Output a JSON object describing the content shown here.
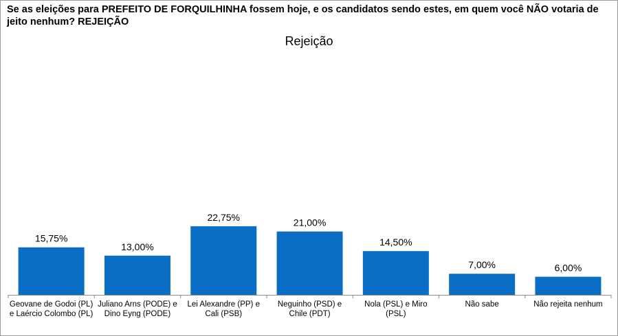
{
  "question": "Se as eleições para PREFEITO DE FORQUILHINHA fossem hoje, e os candidatos sendo estes, em quem você NÃO votaria de jeito nenhum? REJEIÇÃO",
  "colors": {
    "bar": "#0a6fc4",
    "axis": "#8c8c8c"
  },
  "chart_data": {
    "type": "bar",
    "title": "Rejeição",
    "categories": [
      "Geovane de Godoi (PL) e Laércio Colombo (PL)",
      "Juliano Arns (PODE) e Dino Eyng (PODE)",
      "Lei Alexandre (PP) e Cali (PSB)",
      "Neguinho (PSD) e Chile (PDT)",
      "Nola (PSL) e Miro (PSL)",
      "Não sabe",
      "Não rejeita nenhum"
    ],
    "values": [
      15.75,
      13.0,
      22.75,
      21.0,
      14.5,
      7.0,
      6.0
    ],
    "value_labels": [
      "15,75%",
      "13,00%",
      "22,75%",
      "21,00%",
      "14,50%",
      "7,00%",
      "6,00%"
    ],
    "xlabel": "",
    "ylabel": "",
    "grid": false,
    "legend": "none"
  }
}
